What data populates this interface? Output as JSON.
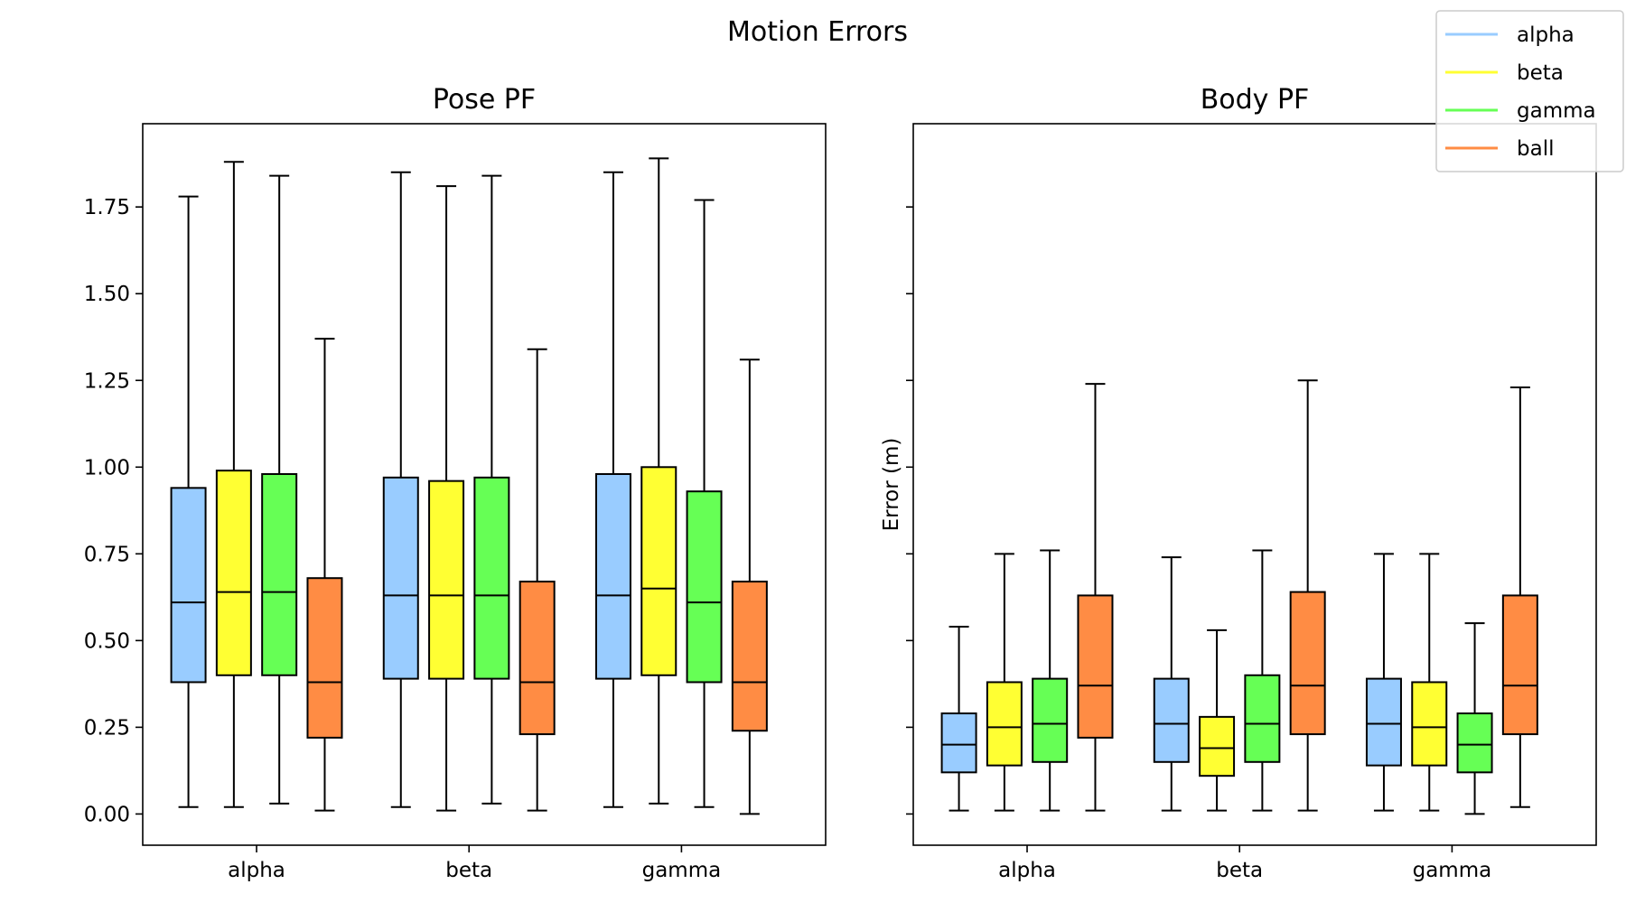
{
  "figure": {
    "title": "Motion Errors"
  },
  "legend": {
    "placement": "top-right",
    "entries": [
      {
        "label": "alpha",
        "color": "#99ccff"
      },
      {
        "label": "beta",
        "color": "#ffff33"
      },
      {
        "label": "gamma",
        "color": "#66ff55"
      },
      {
        "label": "ball",
        "color": "#ff8c44"
      }
    ]
  },
  "chart_data": [
    {
      "type": "box",
      "title": "Pose PF",
      "xlabel": "",
      "ylabel": "",
      "categories": [
        "alpha",
        "beta",
        "gamma"
      ],
      "ylim": [
        -0.09,
        1.99
      ],
      "yticks": [
        "0.00",
        "0.25",
        "0.50",
        "0.75",
        "1.00",
        "1.25",
        "1.50",
        "1.75"
      ],
      "series": [
        {
          "name": "alpha",
          "color": "#99ccff",
          "boxes": [
            {
              "min": 0.02,
              "q1": 0.38,
              "median": 0.61,
              "q3": 0.94,
              "max": 1.78
            },
            {
              "min": 0.02,
              "q1": 0.39,
              "median": 0.63,
              "q3": 0.97,
              "max": 1.85
            },
            {
              "min": 0.02,
              "q1": 0.39,
              "median": 0.63,
              "q3": 0.98,
              "max": 1.85
            }
          ]
        },
        {
          "name": "beta",
          "color": "#ffff33",
          "boxes": [
            {
              "min": 0.02,
              "q1": 0.4,
              "median": 0.64,
              "q3": 0.99,
              "max": 1.88
            },
            {
              "min": 0.01,
              "q1": 0.39,
              "median": 0.63,
              "q3": 0.96,
              "max": 1.81
            },
            {
              "min": 0.03,
              "q1": 0.4,
              "median": 0.65,
              "q3": 1.0,
              "max": 1.89
            }
          ]
        },
        {
          "name": "gamma",
          "color": "#66ff55",
          "boxes": [
            {
              "min": 0.03,
              "q1": 0.4,
              "median": 0.64,
              "q3": 0.98,
              "max": 1.84
            },
            {
              "min": 0.03,
              "q1": 0.39,
              "median": 0.63,
              "q3": 0.97,
              "max": 1.84
            },
            {
              "min": 0.02,
              "q1": 0.38,
              "median": 0.61,
              "q3": 0.93,
              "max": 1.77
            }
          ]
        },
        {
          "name": "ball",
          "color": "#ff8c44",
          "boxes": [
            {
              "min": 0.01,
              "q1": 0.22,
              "median": 0.38,
              "q3": 0.68,
              "max": 1.37
            },
            {
              "min": 0.01,
              "q1": 0.23,
              "median": 0.38,
              "q3": 0.67,
              "max": 1.34
            },
            {
              "min": 0.0,
              "q1": 0.24,
              "median": 0.38,
              "q3": 0.67,
              "max": 1.31
            }
          ]
        }
      ]
    },
    {
      "type": "box",
      "title": "Body PF",
      "xlabel": "",
      "ylabel": "Error (m)",
      "categories": [
        "alpha",
        "beta",
        "gamma"
      ],
      "ylim": [
        -0.09,
        1.99
      ],
      "yticks": [],
      "series": [
        {
          "name": "alpha",
          "color": "#99ccff",
          "boxes": [
            {
              "min": 0.01,
              "q1": 0.12,
              "median": 0.2,
              "q3": 0.29,
              "max": 0.54
            },
            {
              "min": 0.01,
              "q1": 0.15,
              "median": 0.26,
              "q3": 0.39,
              "max": 0.74
            },
            {
              "min": 0.01,
              "q1": 0.14,
              "median": 0.26,
              "q3": 0.39,
              "max": 0.75
            }
          ]
        },
        {
          "name": "beta",
          "color": "#ffff33",
          "boxes": [
            {
              "min": 0.01,
              "q1": 0.14,
              "median": 0.25,
              "q3": 0.38,
              "max": 0.75
            },
            {
              "min": 0.01,
              "q1": 0.11,
              "median": 0.19,
              "q3": 0.28,
              "max": 0.53
            },
            {
              "min": 0.01,
              "q1": 0.14,
              "median": 0.25,
              "q3": 0.38,
              "max": 0.75
            }
          ]
        },
        {
          "name": "gamma",
          "color": "#66ff55",
          "boxes": [
            {
              "min": 0.01,
              "q1": 0.15,
              "median": 0.26,
              "q3": 0.39,
              "max": 0.76
            },
            {
              "min": 0.01,
              "q1": 0.15,
              "median": 0.26,
              "q3": 0.4,
              "max": 0.76
            },
            {
              "min": 0.0,
              "q1": 0.12,
              "median": 0.2,
              "q3": 0.29,
              "max": 0.55
            }
          ]
        },
        {
          "name": "ball",
          "color": "#ff8c44",
          "boxes": [
            {
              "min": 0.01,
              "q1": 0.22,
              "median": 0.37,
              "q3": 0.63,
              "max": 1.24
            },
            {
              "min": 0.01,
              "q1": 0.23,
              "median": 0.37,
              "q3": 0.64,
              "max": 1.25
            },
            {
              "min": 0.02,
              "q1": 0.23,
              "median": 0.37,
              "q3": 0.63,
              "max": 1.23
            }
          ]
        }
      ]
    }
  ]
}
